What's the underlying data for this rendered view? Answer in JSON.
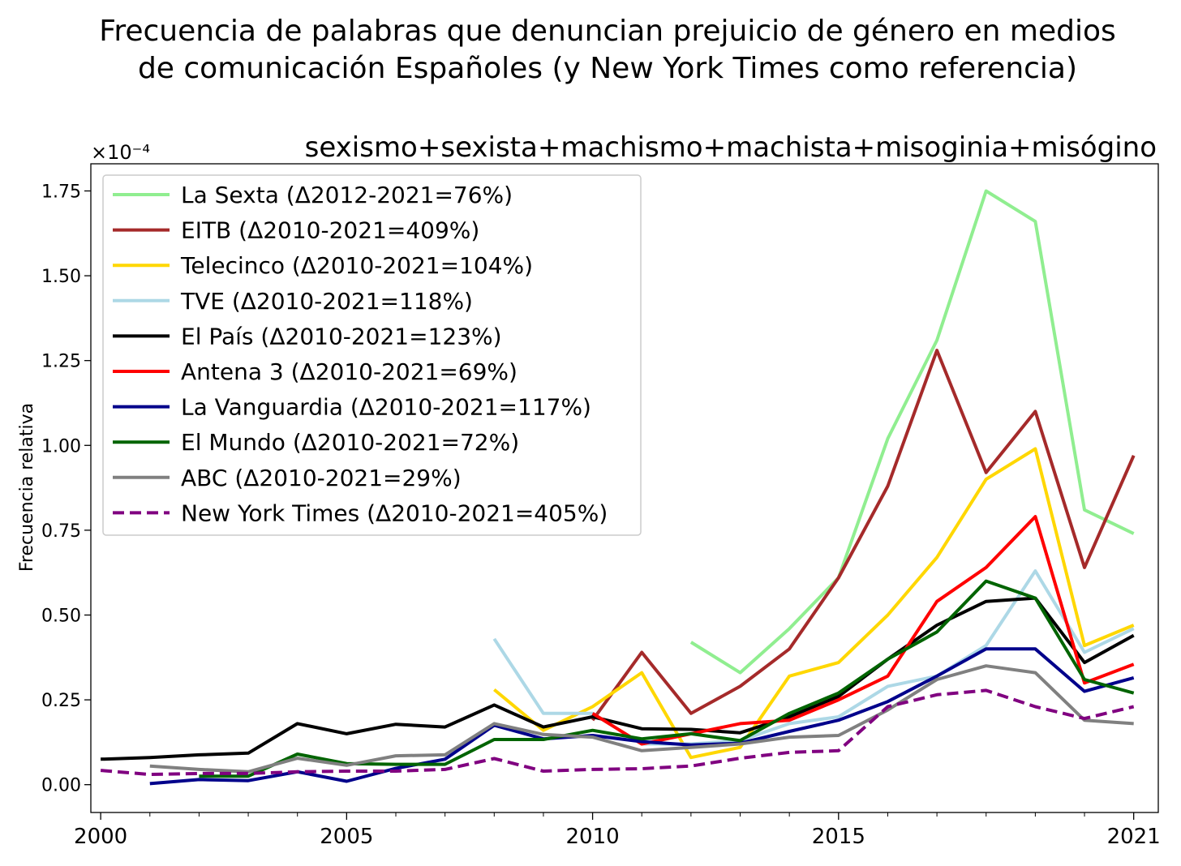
{
  "figure": {
    "title_line1": "Frecuencia de palabras que denuncian prejuicio de género en medios",
    "title_line2": "de comunicación Españoles (y New York Times como referencia)"
  },
  "chart_data": {
    "type": "line",
    "title": "sexismo+sexista+machismo+machista+misoginia+misógino",
    "xlabel": "",
    "ylabel": "Frecuencia relativa",
    "y_scale_label": "×10⁻⁴",
    "xlim": [
      1999.8,
      2021.5
    ],
    "ylim": [
      -0.082,
      1.83
    ],
    "x_ticks": [
      2000,
      2005,
      2010,
      2015,
      2021
    ],
    "x_minor_ticks": [
      2001,
      2002,
      2003,
      2004,
      2006,
      2007,
      2008,
      2009,
      2011,
      2012,
      2013,
      2014,
      2016,
      2017,
      2018,
      2019,
      2020
    ],
    "y_ticks": [
      0.0,
      0.25,
      0.5,
      0.75,
      1.0,
      1.25,
      1.5,
      1.75
    ],
    "y_tick_labels": [
      "0.00",
      "0.25",
      "0.50",
      "0.75",
      "1.00",
      "1.25",
      "1.50",
      "1.75"
    ],
    "grid": false,
    "legend_position": "top-left",
    "series": [
      {
        "name": "La Sexta (Δ2012-2021=76%)",
        "color": "#90ee90",
        "dash": "solid",
        "x": [
          2012,
          2013,
          2014,
          2015,
          2016,
          2017,
          2018,
          2019,
          2020,
          2021
        ],
        "y": [
          0.42,
          0.33,
          0.46,
          0.61,
          1.02,
          1.31,
          1.75,
          1.66,
          0.81,
          0.74
        ]
      },
      {
        "name": "EITB (Δ2010-2021=409%)",
        "color": "#a52a2a",
        "dash": "solid",
        "x": [
          2010,
          2011,
          2012,
          2013,
          2014,
          2015,
          2016,
          2017,
          2018,
          2019,
          2020,
          2021
        ],
        "y": [
          0.19,
          0.39,
          0.21,
          0.29,
          0.4,
          0.61,
          0.88,
          1.28,
          0.92,
          1.1,
          0.64,
          0.97
        ]
      },
      {
        "name": "Telecinco (Δ2010-2021=104%)",
        "color": "#ffd700",
        "dash": "solid",
        "x": [
          2008,
          2009,
          2010,
          2011,
          2012,
          2013,
          2014,
          2015,
          2016,
          2017,
          2018,
          2019,
          2020,
          2021
        ],
        "y": [
          0.28,
          0.16,
          0.23,
          0.33,
          0.08,
          0.11,
          0.32,
          0.36,
          0.5,
          0.67,
          0.9,
          0.99,
          0.41,
          0.47
        ]
      },
      {
        "name": "TVE (Δ2010-2021=118%)",
        "color": "#add8e6",
        "dash": "solid",
        "x": [
          2008,
          2009,
          2010,
          2011,
          2012,
          2013,
          2014,
          2015,
          2016,
          2017,
          2018,
          2019,
          2020,
          2021
        ],
        "y": [
          0.43,
          0.21,
          0.21,
          0.12,
          0.12,
          0.13,
          0.18,
          0.2,
          0.29,
          0.32,
          0.41,
          0.63,
          0.39,
          0.46
        ]
      },
      {
        "name": "El País (Δ2010-2021=123%)",
        "color": "#000000",
        "dash": "solid",
        "x": [
          2000,
          2001,
          2002,
          2003,
          2004,
          2005,
          2006,
          2007,
          2008,
          2009,
          2010,
          2011,
          2012,
          2013,
          2014,
          2015,
          2016,
          2017,
          2018,
          2019,
          2020,
          2021
        ],
        "y": [
          0.075,
          0.08,
          0.088,
          0.093,
          0.18,
          0.15,
          0.178,
          0.17,
          0.235,
          0.17,
          0.2,
          0.165,
          0.163,
          0.153,
          0.2,
          0.26,
          0.37,
          0.47,
          0.54,
          0.55,
          0.36,
          0.44
        ]
      },
      {
        "name": "Antena 3 (Δ2010-2021=69%)",
        "color": "#ff0000",
        "dash": "solid",
        "x": [
          2010,
          2011,
          2012,
          2013,
          2014,
          2015,
          2016,
          2017,
          2018,
          2019,
          2020,
          2021
        ],
        "y": [
          0.21,
          0.12,
          0.15,
          0.18,
          0.19,
          0.25,
          0.32,
          0.54,
          0.64,
          0.79,
          0.3,
          0.355
        ]
      },
      {
        "name": "La Vanguardia (Δ2010-2021=117%)",
        "color": "#00008b",
        "dash": "solid",
        "x": [
          2001,
          2002,
          2003,
          2004,
          2005,
          2006,
          2007,
          2008,
          2009,
          2010,
          2011,
          2012,
          2013,
          2014,
          2015,
          2016,
          2017,
          2018,
          2019,
          2020,
          2021
        ],
        "y": [
          0.003,
          0.015,
          0.012,
          0.038,
          0.01,
          0.048,
          0.075,
          0.175,
          0.135,
          0.145,
          0.127,
          0.117,
          0.122,
          0.157,
          0.19,
          0.245,
          0.32,
          0.4,
          0.4,
          0.275,
          0.315
        ]
      },
      {
        "name": "El Mundo (Δ2010-2021=72%)",
        "color": "#006400",
        "dash": "solid",
        "x": [
          2002,
          2003,
          2004,
          2005,
          2006,
          2007,
          2008,
          2009,
          2010,
          2011,
          2012,
          2013,
          2014,
          2015,
          2016,
          2017,
          2018,
          2019,
          2020,
          2021
        ],
        "y": [
          0.025,
          0.025,
          0.09,
          0.062,
          0.06,
          0.06,
          0.133,
          0.133,
          0.16,
          0.135,
          0.15,
          0.13,
          0.21,
          0.27,
          0.37,
          0.45,
          0.6,
          0.55,
          0.31,
          0.27
        ]
      },
      {
        "name": "ABC (Δ2010-2021=29%)",
        "color": "#808080",
        "dash": "solid",
        "x": [
          2001,
          2002,
          2003,
          2004,
          2005,
          2006,
          2007,
          2008,
          2009,
          2010,
          2011,
          2012,
          2013,
          2014,
          2015,
          2016,
          2017,
          2018,
          2019,
          2020,
          2021
        ],
        "y": [
          0.055,
          0.045,
          0.038,
          0.078,
          0.057,
          0.085,
          0.088,
          0.18,
          0.148,
          0.14,
          0.1,
          0.11,
          0.12,
          0.14,
          0.145,
          0.22,
          0.31,
          0.35,
          0.33,
          0.19,
          0.18
        ]
      },
      {
        "name": "New York Times (Δ2010-2021=405%)",
        "color": "#800080",
        "dash": "dashed",
        "x": [
          2000,
          2001,
          2002,
          2003,
          2004,
          2005,
          2006,
          2007,
          2008,
          2009,
          2010,
          2011,
          2012,
          2013,
          2014,
          2015,
          2016,
          2017,
          2018,
          2019,
          2020,
          2021
        ],
        "y": [
          0.042,
          0.03,
          0.033,
          0.033,
          0.038,
          0.04,
          0.04,
          0.045,
          0.077,
          0.04,
          0.045,
          0.047,
          0.055,
          0.078,
          0.095,
          0.1,
          0.23,
          0.265,
          0.278,
          0.23,
          0.195,
          0.23
        ]
      }
    ]
  }
}
